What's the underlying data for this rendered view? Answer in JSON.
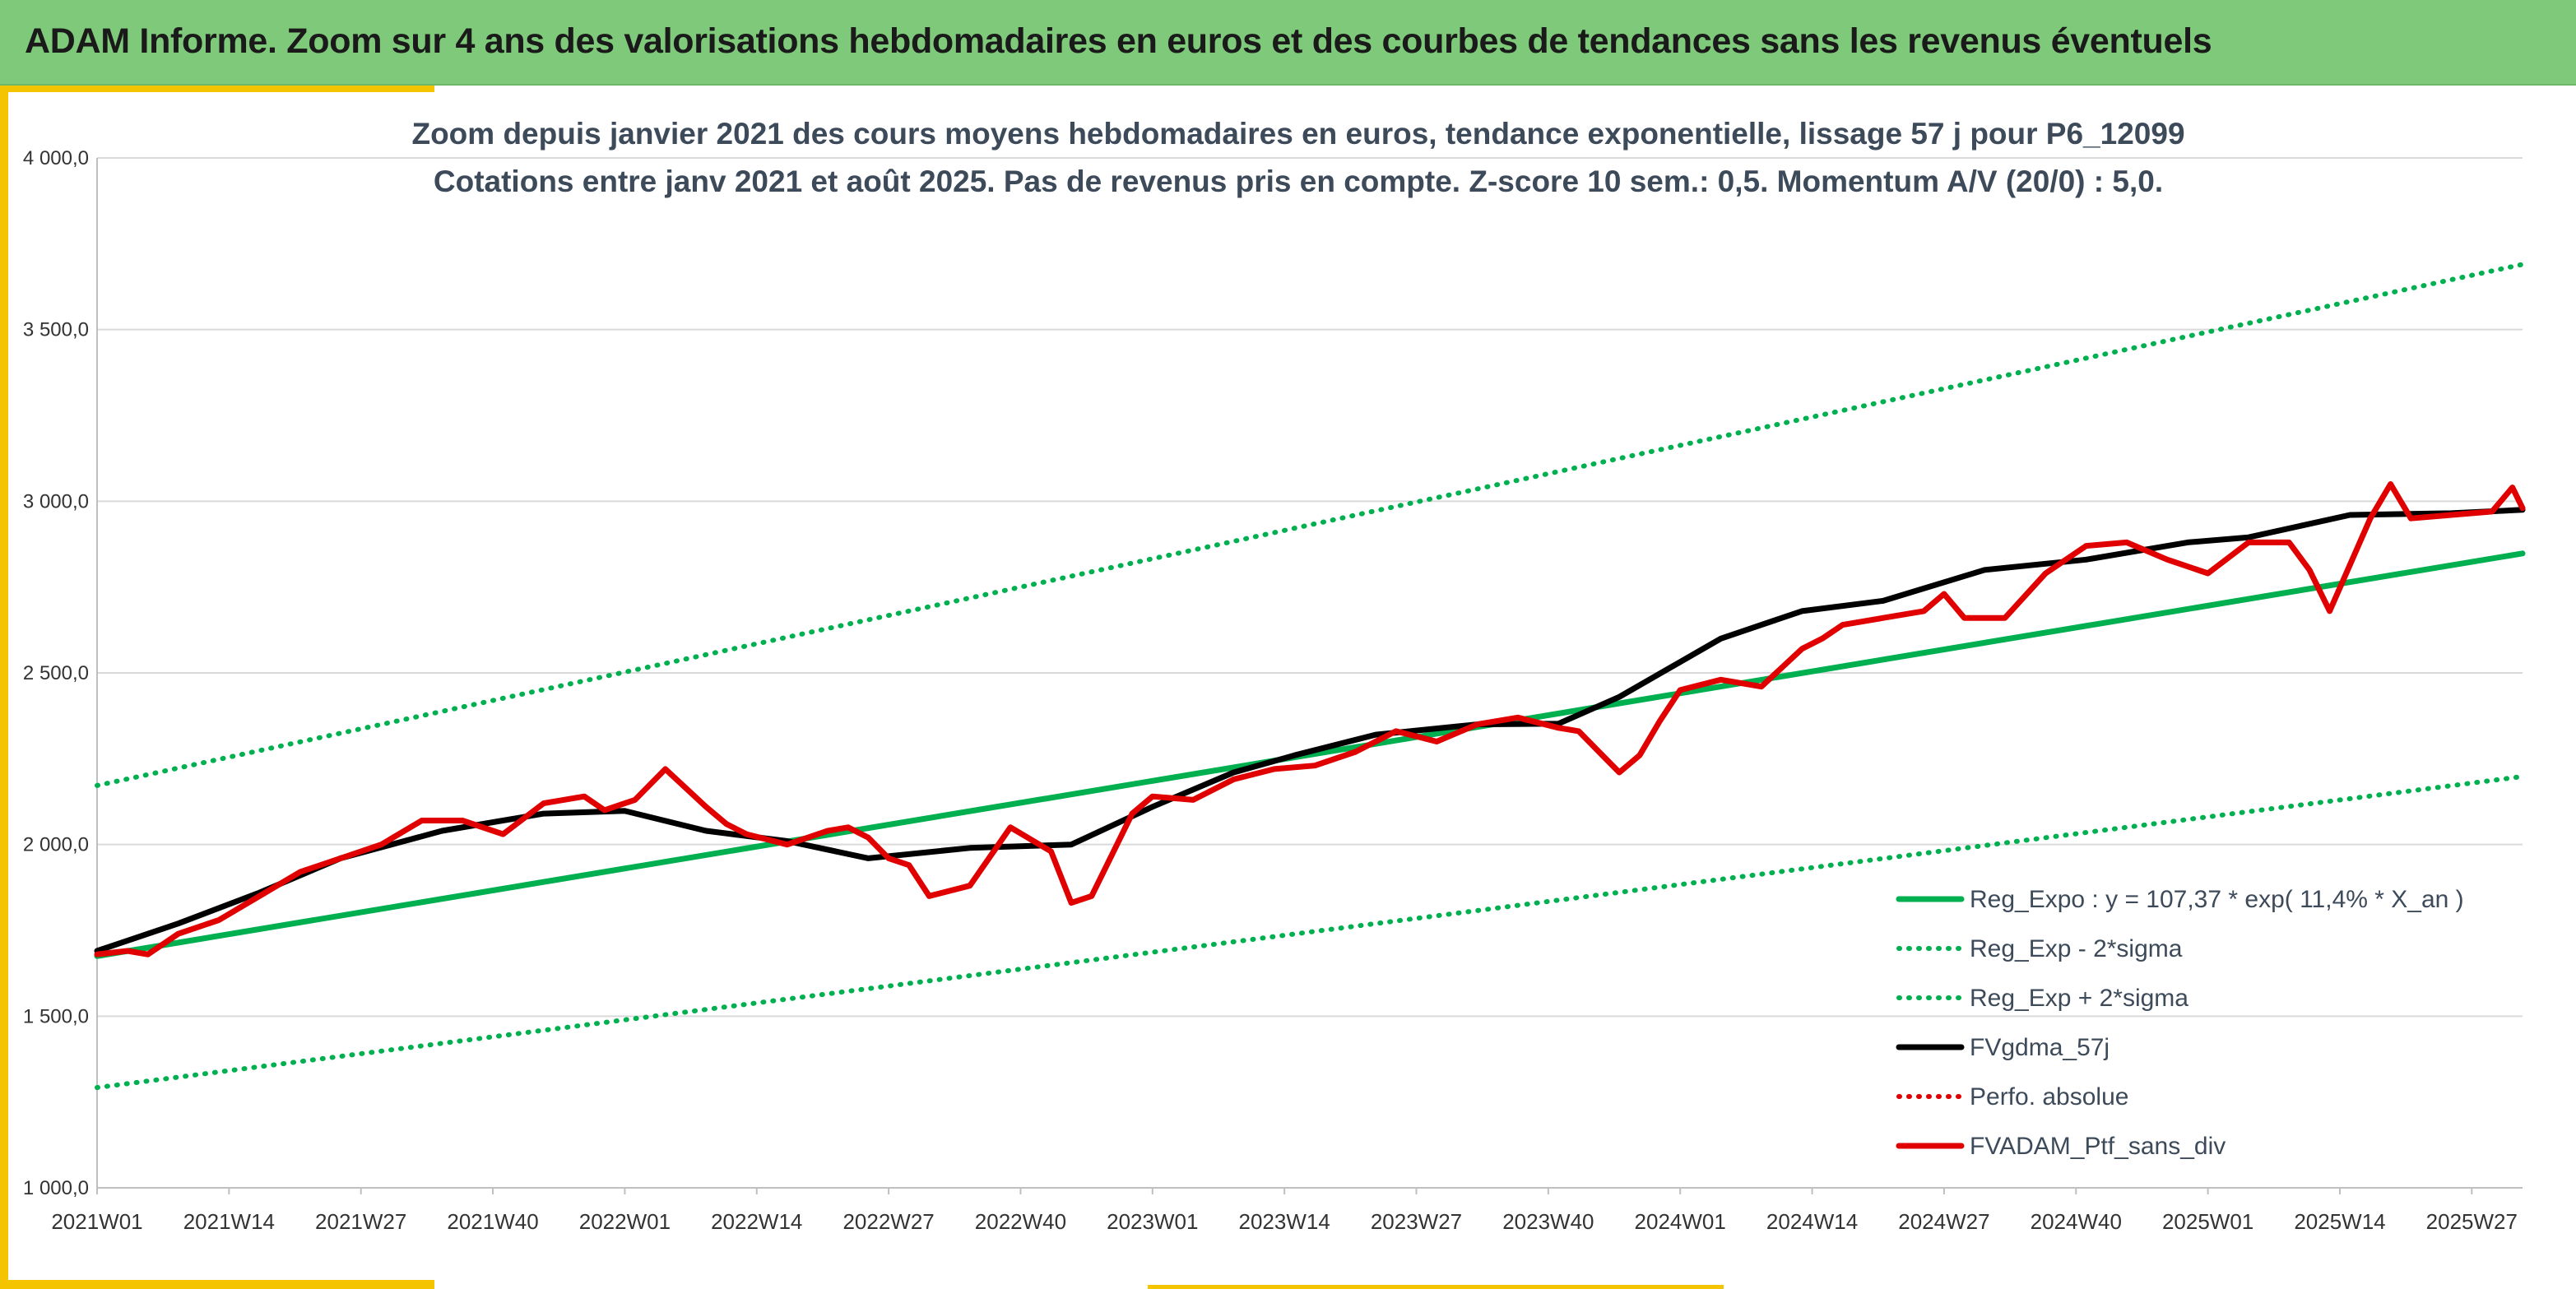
{
  "banner": {
    "title": "ADAM Informe. Zoom sur 4 ans des valorisations hebdomadaires en euros et des courbes de tendances sans les revenus éventuels",
    "color": "#7fc97a"
  },
  "chart_data": {
    "type": "line",
    "title": [
      "Zoom depuis janvier 2021 des cours moyens hebdomadaires en euros, tendance exponentielle, lissage 57 j pour P6_12099",
      "Cotations entre janv 2021 et août 2025. Pas de revenus pris en compte. Z-score 10 sem.: 0,5. Momentum A/V (20/0) : 5,0."
    ],
    "xlabel": "",
    "ylabel": "",
    "ylim": [
      1000,
      4000
    ],
    "grid": true,
    "legend_position": "bottom-right",
    "x_tick_labels": [
      "2021W01",
      "2021W14",
      "2021W27",
      "2021W40",
      "2022W01",
      "2022W14",
      "2022W27",
      "2022W40",
      "2023W01",
      "2023W14",
      "2023W27",
      "2023W40",
      "2024W01",
      "2024W14",
      "2024W27",
      "2024W40",
      "2025W01",
      "2025W14",
      "2025W27"
    ],
    "y_tick_labels": [
      "1 000,0",
      "1 500,0",
      "2 000,0",
      "2 500,0",
      "3 000,0",
      "3 500,0",
      "4 000,0"
    ],
    "y_tick_values": [
      1000,
      1500,
      2000,
      2500,
      3000,
      3500,
      4000
    ],
    "x_range_weeks": [
      0,
      239
    ],
    "series": [
      {
        "name": "Reg_Expo : y = 107,37 * exp( 11,4% *  X_an )",
        "color": "#00b050",
        "style": "solid",
        "x": [
          0,
          239
        ],
        "values": [
          1675,
          2848
        ]
      },
      {
        "name": "Reg_Exp - 2*sigma",
        "color": "#00b050",
        "style": "dotted",
        "x": [
          0,
          239
        ],
        "values": [
          1292,
          2198
        ]
      },
      {
        "name": "Reg_Exp + 2*sigma",
        "color": "#00b050",
        "style": "dotted",
        "x": [
          0,
          239
        ],
        "values": [
          2172,
          3690
        ]
      },
      {
        "name": "FVgdma_57j",
        "color": "#000000",
        "style": "solid",
        "x": [
          0,
          8,
          16,
          24,
          34,
          44,
          52,
          60,
          68,
          76,
          86,
          96,
          104,
          112,
          118,
          126,
          136,
          144,
          150,
          160,
          168,
          176,
          186,
          196,
          206,
          212,
          222,
          232,
          239
        ],
        "values": [
          1690,
          1770,
          1860,
          1960,
          2040,
          2090,
          2098,
          2040,
          2010,
          1960,
          1990,
          2000,
          2110,
          2210,
          2260,
          2320,
          2350,
          2352,
          2430,
          2600,
          2680,
          2710,
          2800,
          2830,
          2880,
          2895,
          2960,
          2965,
          2975
        ]
      },
      {
        "name": "Perfo. absolue",
        "color": "#e00000",
        "style": "dotted",
        "x": [],
        "values": []
      },
      {
        "name": "FVADAM_Ptf_sans_div",
        "color": "#e00000",
        "style": "solid",
        "x": [
          0,
          3,
          5,
          8,
          12,
          16,
          20,
          24,
          28,
          32,
          36,
          40,
          44,
          48,
          50,
          53,
          56,
          60,
          62,
          64,
          68,
          72,
          74,
          76,
          78,
          80,
          82,
          86,
          90,
          94,
          96,
          98,
          100,
          102,
          104,
          108,
          112,
          116,
          120,
          124,
          128,
          132,
          136,
          140,
          144,
          146,
          148,
          150,
          152,
          154,
          156,
          160,
          164,
          168,
          170,
          172,
          174,
          176,
          180,
          182,
          184,
          188,
          192,
          196,
          200,
          204,
          208,
          212,
          216,
          218,
          220,
          224,
          226,
          228,
          232,
          236,
          238,
          239
        ],
        "values": [
          1680,
          1690,
          1680,
          1740,
          1780,
          1850,
          1920,
          1960,
          2000,
          2070,
          2070,
          2030,
          2120,
          2140,
          2100,
          2130,
          2220,
          2110,
          2060,
          2030,
          2000,
          2040,
          2050,
          2020,
          1960,
          1940,
          1850,
          1880,
          2050,
          1980,
          1830,
          1850,
          1970,
          2090,
          2140,
          2130,
          2190,
          2220,
          2230,
          2270,
          2330,
          2300,
          2350,
          2370,
          2340,
          2330,
          2270,
          2210,
          2260,
          2360,
          2450,
          2480,
          2460,
          2570,
          2600,
          2640,
          2650,
          2660,
          2680,
          2730,
          2660,
          2660,
          2790,
          2870,
          2880,
          2830,
          2790,
          2880,
          2880,
          2800,
          2680,
          2950,
          3050,
          2950,
          2960,
          2970,
          3040,
          2980
        ]
      }
    ]
  }
}
